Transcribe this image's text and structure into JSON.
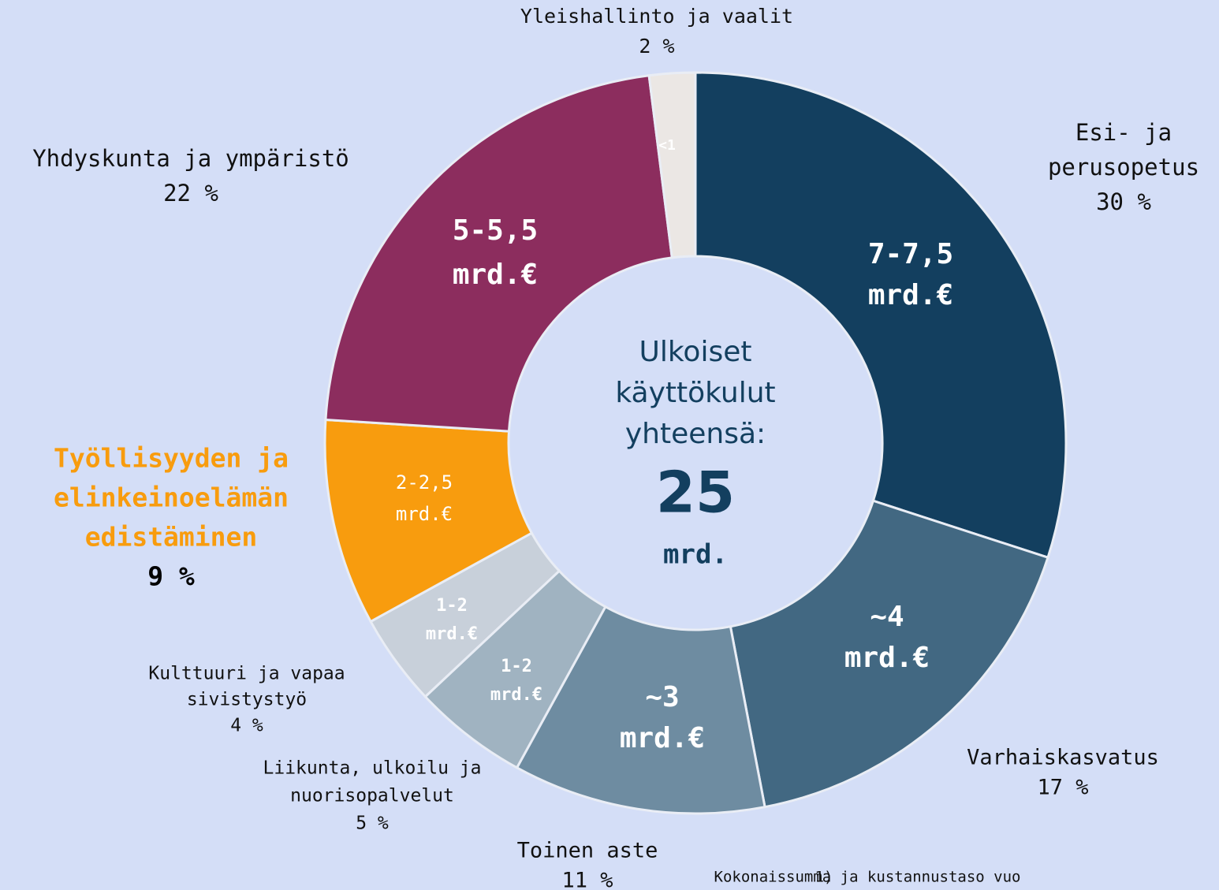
{
  "chart_data": {
    "type": "donut",
    "categories": [
      [
        "Esi- ja",
        "perusopetus"
      ],
      [
        "Varhaiskasvatus"
      ],
      [
        "Toinen aste"
      ],
      [
        "Liikunta, ulkoilu ja",
        "nuorisopalvelut"
      ],
      [
        "Kulttuuri ja vapaa",
        "sivistystyö"
      ],
      [
        "Työllisyyden ja",
        "elinkeinoelämän",
        "edistäminen"
      ],
      [
        "Yhdyskunta ja ympäristö"
      ],
      [
        "Yleishallinto ja vaalit"
      ]
    ],
    "values": [
      30,
      17,
      11,
      5,
      4,
      9,
      22,
      2
    ],
    "value_labels": [
      "30 %",
      "17 %",
      "11 %",
      "5 %",
      "4 %",
      "9 %",
      "22 %",
      "2 %"
    ],
    "amount_labels": [
      [
        "7-7,5",
        "mrd.€"
      ],
      [
        "~4",
        "mrd.€"
      ],
      [
        "~3",
        "mrd.€"
      ],
      [
        "1-2",
        "mrd.€"
      ],
      [
        "1-2",
        "mrd.€"
      ],
      [
        "2-2,5",
        "mrd.€"
      ],
      [
        "5-5,5",
        "mrd.€"
      ],
      [
        "<1"
      ]
    ],
    "colors": [
      "#133f5f",
      "#426882",
      "#6e8ca1",
      "#a0b3c1",
      "#c8d0da",
      "#f89c0e",
      "#8c2d5e",
      "#ebe7e4"
    ],
    "center_text": [
      "Ulkoiset",
      "käyttökulut",
      "yhteensä:"
    ],
    "center_total": 25,
    "center_unit": "mrd.",
    "footnote_marker": "1)",
    "footnote": "Kokonaissumma ja kustannustaso vuo"
  }
}
